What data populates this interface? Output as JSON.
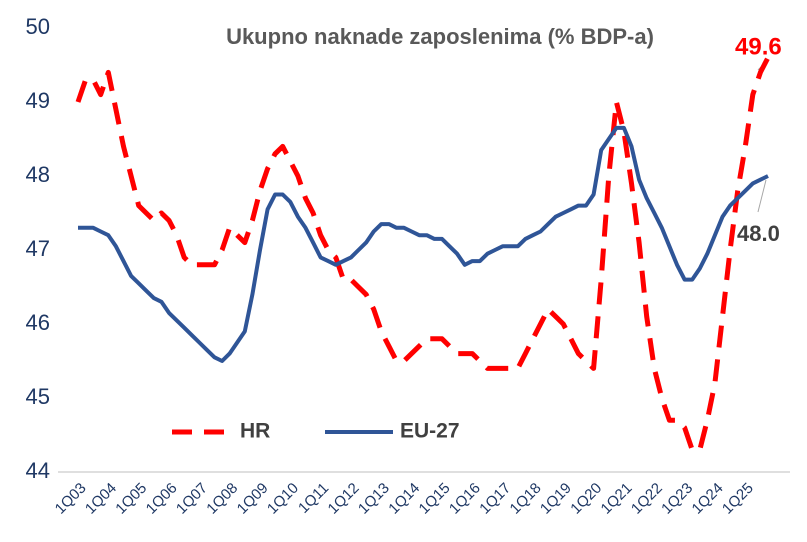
{
  "chart_data": {
    "type": "line",
    "title": "Ukupno naknade zaposlenima (% BDP-a)",
    "categories": [
      "1Q03",
      null,
      null,
      null,
      "1Q04",
      null,
      null,
      null,
      "1Q05",
      null,
      null,
      null,
      "1Q06",
      null,
      null,
      null,
      "1Q07",
      null,
      null,
      null,
      "1Q08",
      null,
      null,
      null,
      "1Q09",
      null,
      null,
      null,
      "1Q10",
      null,
      null,
      null,
      "1Q11",
      null,
      null,
      null,
      "1Q12",
      null,
      null,
      null,
      "1Q13",
      null,
      null,
      null,
      "1Q14",
      null,
      null,
      null,
      "1Q15",
      null,
      null,
      null,
      "1Q16",
      null,
      null,
      null,
      "1Q17",
      null,
      null,
      null,
      "1Q18",
      null,
      null,
      null,
      "1Q19",
      null,
      null,
      null,
      "1Q20",
      null,
      null,
      null,
      "1Q21",
      null,
      null,
      null,
      "1Q22",
      null,
      null,
      null,
      "1Q23",
      null,
      null,
      null,
      "1Q24",
      null,
      null,
      null,
      "1Q25",
      null,
      null,
      null
    ],
    "series": [
      {
        "name": "HR",
        "color": "#ff0000",
        "dash": true,
        "values": [
          49.0,
          49.3,
          49.3,
          49.1,
          49.4,
          48.9,
          48.4,
          48.0,
          47.6,
          47.5,
          47.4,
          47.5,
          47.4,
          47.2,
          46.9,
          46.8,
          46.8,
          46.8,
          46.8,
          47.0,
          47.3,
          47.2,
          47.1,
          47.4,
          47.8,
          48.1,
          48.3,
          48.4,
          48.2,
          48.0,
          47.7,
          47.5,
          47.2,
          47.0,
          46.9,
          46.6,
          46.6,
          46.5,
          46.4,
          46.2,
          45.9,
          45.7,
          45.5,
          45.5,
          45.6,
          45.7,
          45.8,
          45.8,
          45.8,
          45.7,
          45.6,
          45.6,
          45.6,
          45.5,
          45.4,
          45.4,
          45.4,
          45.4,
          45.4,
          45.6,
          45.8,
          46.0,
          46.2,
          46.1,
          46.0,
          45.8,
          45.6,
          45.5,
          45.4,
          46.6,
          48.0,
          49.0,
          48.6,
          47.9,
          47.1,
          46.1,
          45.4,
          45.0,
          44.7,
          44.7,
          44.6,
          44.3,
          44.3,
          44.7,
          45.2,
          46.1,
          47.0,
          47.8,
          48.4,
          49.1,
          49.4,
          49.6
        ]
      },
      {
        "name": "EU-27",
        "color": "#2f5597",
        "dash": false,
        "values": [
          47.3,
          47.3,
          47.3,
          47.25,
          47.2,
          47.05,
          46.85,
          46.65,
          46.55,
          46.45,
          46.35,
          46.3,
          46.15,
          46.05,
          45.95,
          45.85,
          45.75,
          45.65,
          45.55,
          45.5,
          45.6,
          45.75,
          45.9,
          46.4,
          47.0,
          47.55,
          47.75,
          47.75,
          47.65,
          47.45,
          47.3,
          47.1,
          46.9,
          46.85,
          46.8,
          46.85,
          46.9,
          47.0,
          47.1,
          47.25,
          47.35,
          47.35,
          47.3,
          47.3,
          47.25,
          47.2,
          47.2,
          47.15,
          47.15,
          47.05,
          46.95,
          46.8,
          46.85,
          46.85,
          46.95,
          47.0,
          47.05,
          47.05,
          47.05,
          47.15,
          47.2,
          47.25,
          47.35,
          47.45,
          47.5,
          47.55,
          47.6,
          47.6,
          47.75,
          48.35,
          48.5,
          48.65,
          48.65,
          48.4,
          47.95,
          47.7,
          47.5,
          47.3,
          47.05,
          46.8,
          46.6,
          46.6,
          46.75,
          46.95,
          47.2,
          47.45,
          47.6,
          47.7,
          47.8,
          47.9,
          47.95,
          48.0
        ]
      }
    ],
    "annotations": [
      "49.6",
      "48.0"
    ],
    "ylim": [
      44,
      50
    ],
    "yticks": [
      44,
      45,
      46,
      47,
      48,
      49,
      50
    ],
    "grid": false
  }
}
